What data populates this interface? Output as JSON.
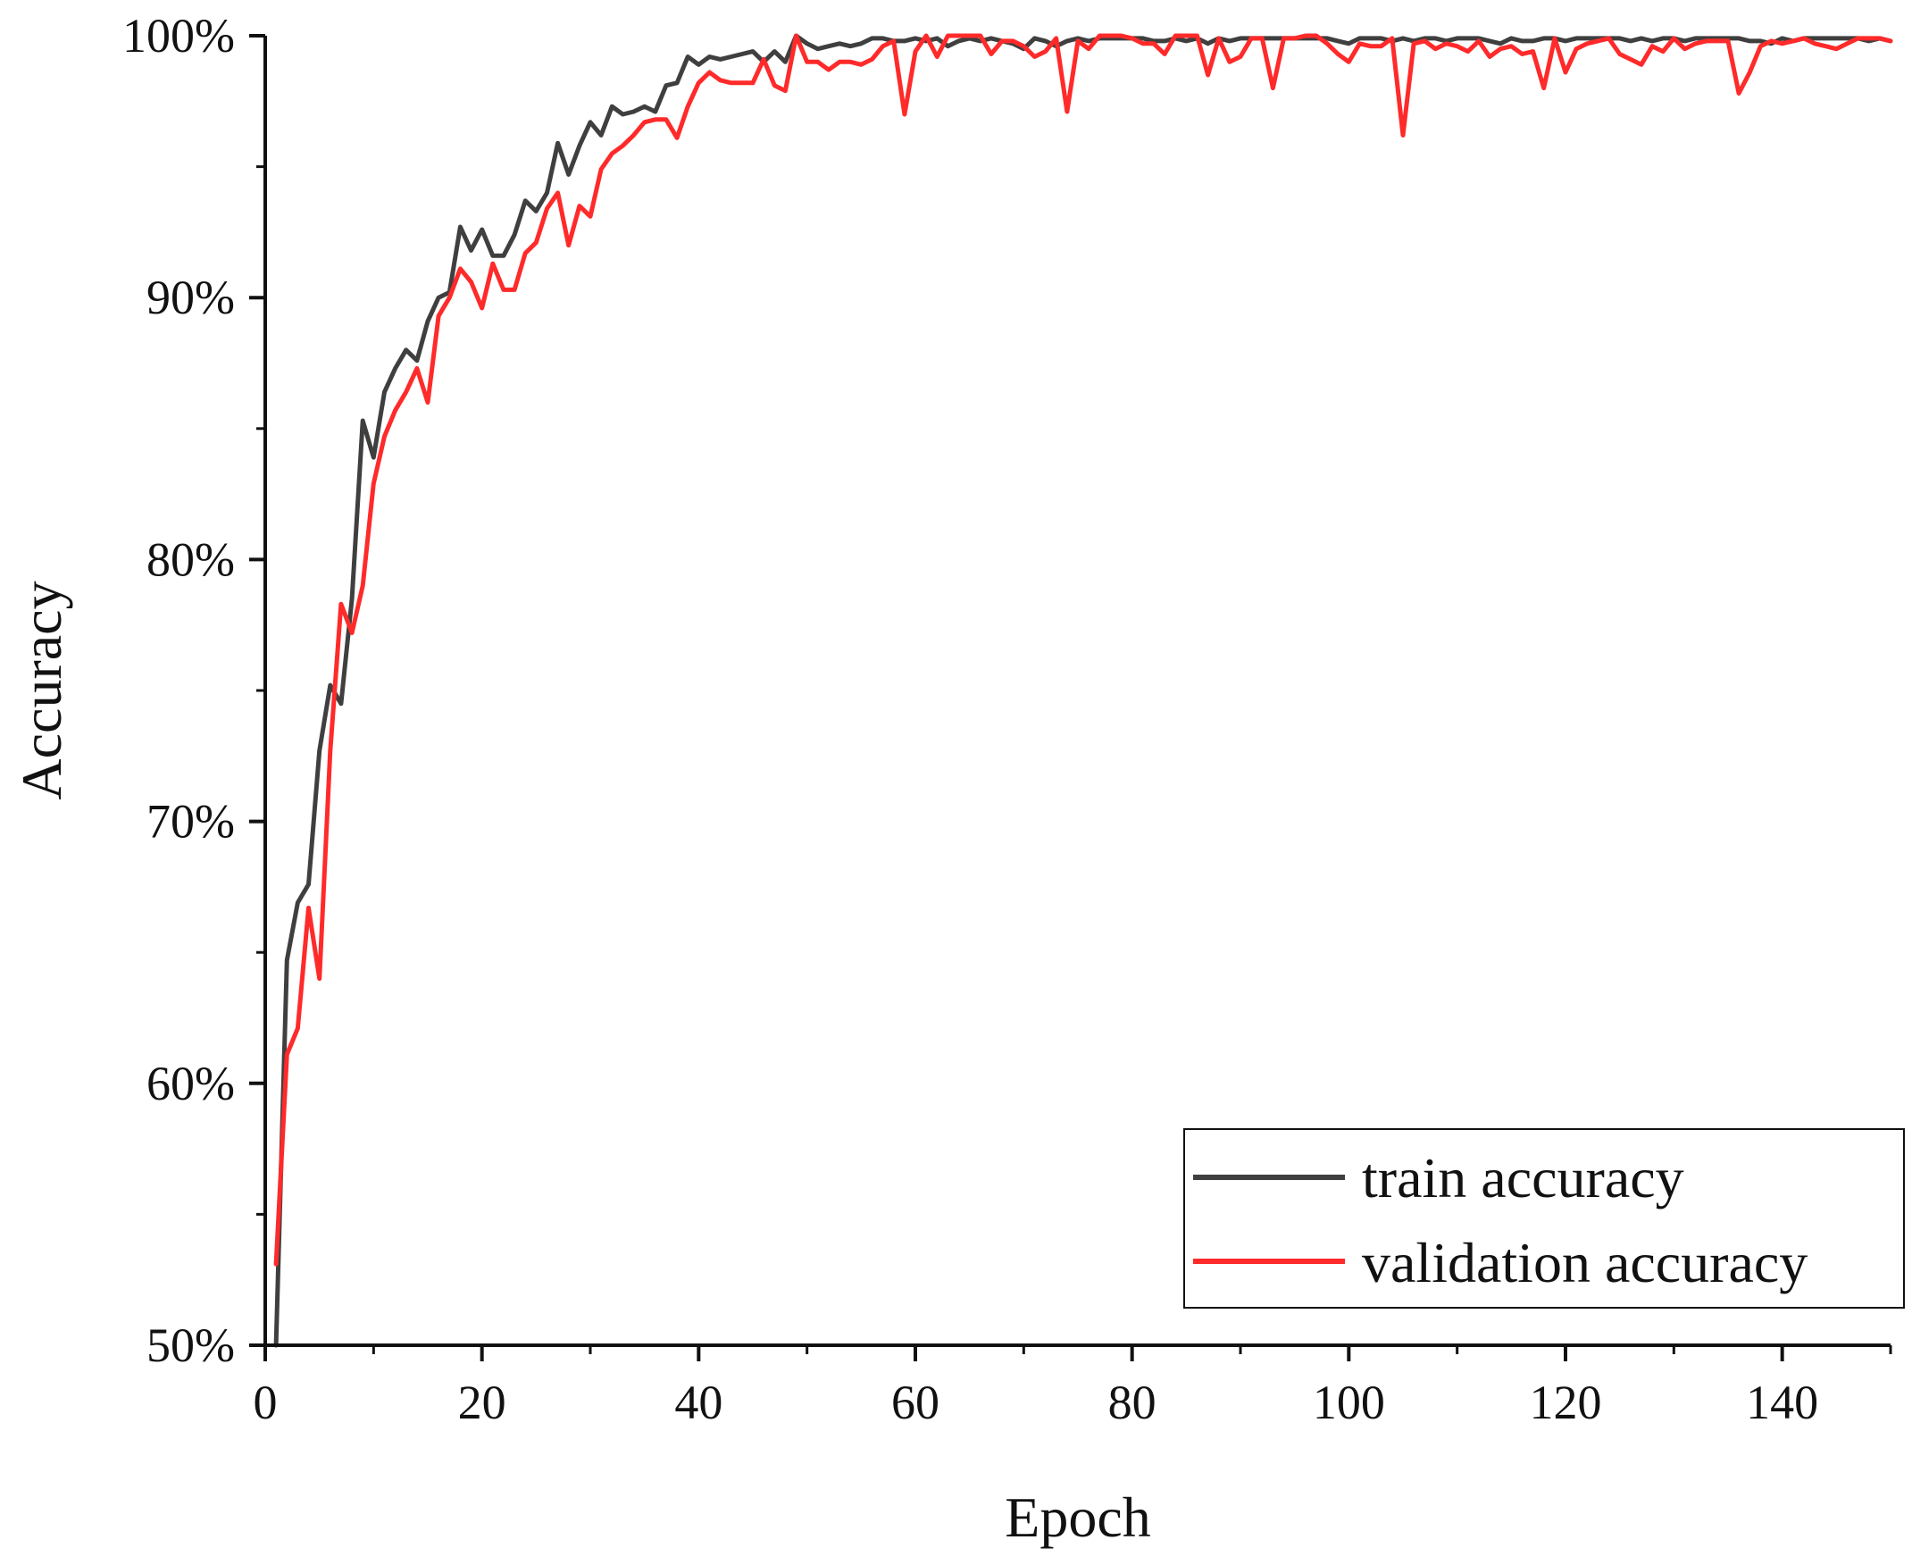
{
  "chart_data": {
    "type": "line",
    "xlabel": "Epoch",
    "ylabel": "Accuracy",
    "xlim": [
      0,
      150
    ],
    "ylim": [
      0.5,
      1.0
    ],
    "x_ticks": [
      0,
      20,
      40,
      60,
      80,
      100,
      120,
      140
    ],
    "y_ticks": [
      0.5,
      0.6,
      0.7,
      0.8,
      0.9,
      1.0
    ],
    "x_tick_labels": [
      "0",
      "20",
      "40",
      "60",
      "80",
      "100",
      "120",
      "140"
    ],
    "y_tick_labels": [
      "50%",
      "60%",
      "70%",
      "80%",
      "90%",
      "100%"
    ],
    "grid": false,
    "legend_position": "bottom-right",
    "series": [
      {
        "name": "train accuracy",
        "color": "#3f3f3f",
        "x": [
          1,
          2,
          3,
          4,
          5,
          6,
          7,
          8,
          9,
          10,
          11,
          12,
          13,
          14,
          15,
          16,
          17,
          18,
          19,
          20,
          21,
          22,
          23,
          24,
          25,
          26,
          27,
          28,
          29,
          30,
          31,
          32,
          33,
          34,
          35,
          36,
          37,
          38,
          39,
          40,
          41,
          42,
          43,
          44,
          45,
          46,
          47,
          48,
          49,
          50,
          51,
          52,
          53,
          54,
          55,
          56,
          57,
          58,
          59,
          60,
          61,
          62,
          63,
          64,
          65,
          66,
          67,
          68,
          69,
          70,
          71,
          72,
          73,
          74,
          75,
          76,
          77,
          78,
          79,
          80,
          81,
          82,
          83,
          84,
          85,
          86,
          87,
          88,
          89,
          90,
          91,
          92,
          93,
          94,
          95,
          96,
          97,
          98,
          99,
          100,
          101,
          102,
          103,
          104,
          105,
          106,
          107,
          108,
          109,
          110,
          111,
          112,
          113,
          114,
          115,
          116,
          117,
          118,
          119,
          120,
          121,
          122,
          123,
          124,
          125,
          126,
          127,
          128,
          129,
          130,
          131,
          132,
          133,
          134,
          135,
          136,
          137,
          138,
          139,
          140,
          141,
          142,
          143,
          144,
          145,
          146,
          147,
          148,
          149,
          150
        ],
        "values": [
          0.5,
          0.647,
          0.669,
          0.676,
          0.727,
          0.752,
          0.745,
          0.785,
          0.853,
          0.839,
          0.864,
          0.873,
          0.88,
          0.876,
          0.891,
          0.9,
          0.902,
          0.927,
          0.918,
          0.926,
          0.916,
          0.916,
          0.924,
          0.937,
          0.933,
          0.94,
          0.959,
          0.947,
          0.958,
          0.967,
          0.962,
          0.973,
          0.97,
          0.971,
          0.973,
          0.971,
          0.981,
          0.982,
          0.992,
          0.989,
          0.992,
          0.991,
          0.992,
          0.993,
          0.994,
          0.99,
          0.994,
          0.99,
          1.0,
          0.997,
          0.995,
          0.996,
          0.997,
          0.996,
          0.997,
          0.999,
          0.999,
          0.998,
          0.998,
          0.999,
          0.998,
          0.999,
          0.996,
          0.998,
          0.999,
          0.998,
          0.999,
          0.998,
          0.997,
          0.995,
          0.999,
          0.998,
          0.996,
          0.998,
          0.999,
          0.998,
          0.999,
          0.999,
          0.999,
          0.999,
          0.999,
          0.998,
          0.998,
          0.999,
          0.998,
          0.999,
          0.997,
          0.999,
          0.998,
          0.999,
          0.999,
          0.999,
          0.999,
          0.999,
          0.999,
          0.999,
          0.999,
          0.999,
          0.998,
          0.997,
          0.999,
          0.999,
          0.999,
          0.998,
          0.999,
          0.998,
          0.999,
          0.999,
          0.998,
          0.999,
          0.999,
          0.999,
          0.998,
          0.997,
          0.999,
          0.998,
          0.998,
          0.999,
          0.999,
          0.998,
          0.999,
          0.999,
          0.999,
          0.999,
          0.999,
          0.998,
          0.999,
          0.998,
          0.999,
          0.999,
          0.998,
          0.999,
          0.999,
          0.999,
          0.999,
          0.999,
          0.998,
          0.998,
          0.997,
          0.999,
          0.998,
          0.999,
          0.999,
          0.999,
          0.999,
          0.999,
          0.999,
          0.998,
          0.999,
          0.998
        ]
      },
      {
        "name": "validation accuracy",
        "color": "#ff2a2a",
        "x": [
          1,
          2,
          3,
          4,
          5,
          6,
          7,
          8,
          9,
          10,
          11,
          12,
          13,
          14,
          15,
          16,
          17,
          18,
          19,
          20,
          21,
          22,
          23,
          24,
          25,
          26,
          27,
          28,
          29,
          30,
          31,
          32,
          33,
          34,
          35,
          36,
          37,
          38,
          39,
          40,
          41,
          42,
          43,
          44,
          45,
          46,
          47,
          48,
          49,
          50,
          51,
          52,
          53,
          54,
          55,
          56,
          57,
          58,
          59,
          60,
          61,
          62,
          63,
          64,
          65,
          66,
          67,
          68,
          69,
          70,
          71,
          72,
          73,
          74,
          75,
          76,
          77,
          78,
          79,
          80,
          81,
          82,
          83,
          84,
          85,
          86,
          87,
          88,
          89,
          90,
          91,
          92,
          93,
          94,
          95,
          96,
          97,
          98,
          99,
          100,
          101,
          102,
          103,
          104,
          105,
          106,
          107,
          108,
          109,
          110,
          111,
          112,
          113,
          114,
          115,
          116,
          117,
          118,
          119,
          120,
          121,
          122,
          123,
          124,
          125,
          126,
          127,
          128,
          129,
          130,
          131,
          132,
          133,
          134,
          135,
          136,
          137,
          138,
          139,
          140,
          141,
          142,
          143,
          144,
          145,
          146,
          147,
          148,
          149,
          150
        ],
        "values": [
          0.531,
          0.611,
          0.621,
          0.667,
          0.64,
          0.727,
          0.783,
          0.772,
          0.79,
          0.829,
          0.847,
          0.857,
          0.864,
          0.873,
          0.86,
          0.893,
          0.9,
          0.911,
          0.906,
          0.896,
          0.913,
          0.903,
          0.903,
          0.917,
          0.921,
          0.934,
          0.94,
          0.92,
          0.935,
          0.931,
          0.949,
          0.955,
          0.958,
          0.962,
          0.967,
          0.968,
          0.968,
          0.961,
          0.973,
          0.982,
          0.986,
          0.983,
          0.982,
          0.982,
          0.982,
          0.991,
          0.981,
          0.979,
          1.0,
          0.99,
          0.99,
          0.987,
          0.99,
          0.99,
          0.989,
          0.991,
          0.996,
          0.998,
          0.97,
          0.994,
          1.0,
          0.992,
          1.0,
          1.0,
          1.0,
          1.0,
          0.993,
          0.998,
          0.998,
          0.996,
          0.992,
          0.994,
          0.999,
          0.971,
          0.998,
          0.995,
          1.0,
          1.0,
          1.0,
          0.999,
          0.997,
          0.997,
          0.993,
          1.0,
          1.0,
          1.0,
          0.985,
          0.999,
          0.99,
          0.992,
          0.999,
          0.999,
          0.98,
          0.999,
          0.999,
          1.0,
          1.0,
          0.997,
          0.993,
          0.99,
          0.997,
          0.996,
          0.996,
          0.999,
          0.962,
          0.997,
          0.998,
          0.995,
          0.997,
          0.996,
          0.994,
          0.998,
          0.992,
          0.995,
          0.996,
          0.993,
          0.994,
          0.98,
          0.999,
          0.986,
          0.995,
          0.997,
          0.998,
          0.999,
          0.993,
          0.991,
          0.989,
          0.996,
          0.994,
          0.999,
          0.995,
          0.997,
          0.998,
          0.998,
          0.998,
          0.978,
          0.986,
          0.996,
          0.998,
          0.997,
          0.998,
          0.999,
          0.997,
          0.996,
          0.995,
          0.997,
          0.999,
          0.999,
          0.999,
          0.998
        ]
      }
    ]
  }
}
